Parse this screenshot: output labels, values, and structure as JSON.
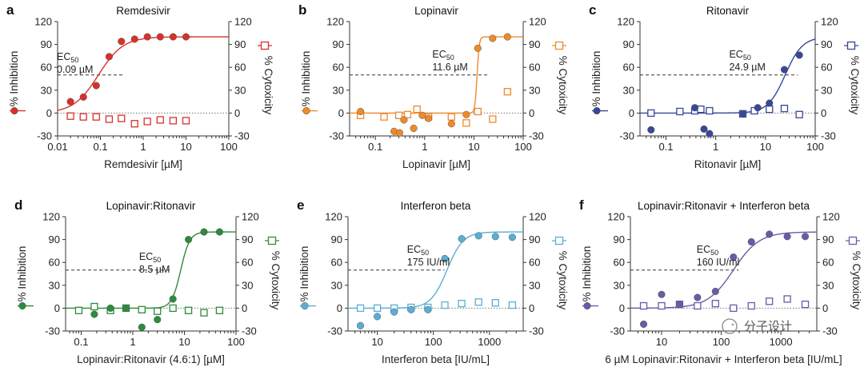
{
  "chart_data": [
    {
      "type": "scatter",
      "panel": "a",
      "title": "Remdesivir",
      "xlabel": "Remdesivir [µM]",
      "ylabel_left": "% Inhibition",
      "ylabel_right": "% Cytoxicity",
      "x_scale": "log",
      "xlim": [
        0.01,
        100
      ],
      "x_ticks": [
        0.01,
        0.1,
        1,
        10,
        100
      ],
      "x_tick_labels": [
        "0.01",
        "0.1",
        "1",
        "10",
        "100"
      ],
      "ylim": [
        -30,
        120
      ],
      "y_ticks": [
        -30,
        0,
        30,
        60,
        90,
        120
      ],
      "color": "#d7312a",
      "ec50_label": "EC50",
      "ec50_value_label": "0.09 µM",
      "ec50": 0.09,
      "fit_top": 100,
      "fit_bottom": 0,
      "fit_hill": 1.5,
      "inhibition": {
        "x": [
          0.02,
          0.04,
          0.08,
          0.16,
          0.31,
          0.63,
          1.25,
          2.5,
          5,
          10
        ],
        "y": [
          15,
          21,
          36,
          74,
          94,
          97,
          100,
          100,
          100,
          100
        ]
      },
      "cytotoxicity": {
        "x": [
          0.02,
          0.04,
          0.08,
          0.16,
          0.31,
          0.63,
          1.25,
          2.5,
          5,
          10
        ],
        "y": [
          -4,
          -5,
          -5,
          -8,
          -7,
          -14,
          -11,
          -9,
          -10,
          -10
        ]
      }
    },
    {
      "type": "scatter",
      "panel": "b",
      "title": "Lopinavir",
      "xlabel": "Lopinavir [µM]",
      "ylabel_left": "% Inhibition",
      "ylabel_right": "% Cytoxicity",
      "x_scale": "log",
      "xlim": [
        0.03,
        100
      ],
      "x_ticks": [
        0.1,
        1,
        10,
        100
      ],
      "x_tick_labels": [
        "0.1",
        "1",
        "10",
        "100"
      ],
      "ylim": [
        -30,
        120
      ],
      "y_ticks": [
        -30,
        0,
        30,
        60,
        90,
        120
      ],
      "color": "#ef8a2a",
      "ec50_label": "EC50",
      "ec50_value_label": "11.6 µM",
      "ec50": 11.6,
      "fit_top": 100,
      "fit_bottom": 0,
      "fit_hill": 20,
      "inhibition": {
        "x": [
          0.05,
          0.24,
          0.31,
          0.38,
          0.6,
          0.9,
          1.2,
          3.5,
          7,
          12,
          24,
          48
        ],
        "y": [
          2,
          -24,
          -26,
          -9,
          -20,
          -3,
          -7,
          -14,
          -2,
          85,
          98,
          100
        ]
      },
      "cytotoxicity": {
        "x": [
          0.05,
          0.15,
          0.3,
          0.45,
          0.7,
          1.2,
          3.5,
          7,
          12,
          24,
          48
        ],
        "y": [
          -3,
          -5,
          -3,
          -2,
          5,
          -5,
          -5,
          -13,
          2,
          -8,
          28
        ]
      }
    },
    {
      "type": "scatter",
      "panel": "c",
      "title": "Ritonavir",
      "xlabel": "Ritonavir [µM]",
      "ylabel_left": "% Inhibition",
      "ylabel_right": "% Cytoxicity",
      "x_scale": "log",
      "xlim": [
        0.03,
        100
      ],
      "x_ticks": [
        0.1,
        1,
        10,
        100
      ],
      "x_tick_labels": [
        "0.1",
        "1",
        "10",
        "100"
      ],
      "ylim": [
        -30,
        120
      ],
      "y_ticks": [
        -30,
        0,
        30,
        60,
        90,
        120
      ],
      "color": "#37479a",
      "ec50_label": "EC50",
      "ec50_value_label": "24.9 µM",
      "ec50": 24.9,
      "fit_top": 100,
      "fit_bottom": 0,
      "fit_hill": 2.5,
      "inhibition": {
        "x": [
          0.05,
          0.38,
          0.58,
          0.75,
          3.5,
          7,
          12,
          24,
          48
        ],
        "y": [
          -22,
          7,
          -21,
          -27,
          -1,
          7,
          13,
          57,
          76
        ]
      },
      "cytotoxicity": {
        "x": [
          0.05,
          0.19,
          0.38,
          0.5,
          0.75,
          3.5,
          6,
          12,
          24,
          48
        ],
        "y": [
          0,
          2,
          3,
          5,
          3,
          -1,
          3,
          5,
          6,
          -2
        ]
      }
    },
    {
      "type": "scatter",
      "panel": "d",
      "title": "Lopinavir:Ritonavir",
      "xlabel": "Lopinavir:Ritonavir (4.6:1) [µM]",
      "ylabel_left": "% Inhibition",
      "ylabel_right": "% Cytoxicity",
      "x_scale": "log",
      "xlim": [
        0.05,
        100
      ],
      "x_ticks": [
        0.1,
        1,
        10,
        100
      ],
      "x_tick_labels": [
        "0.1",
        "1",
        "10",
        "100"
      ],
      "ylim": [
        -30,
        120
      ],
      "y_ticks": [
        -30,
        0,
        30,
        60,
        90,
        120
      ],
      "color": "#2e8b3a",
      "ec50_label": "EC50",
      "ec50_value_label": "8.5 µM",
      "ec50": 8.5,
      "fit_top": 100,
      "fit_bottom": 0,
      "fit_hill": 5,
      "inhibition": {
        "x": [
          0.18,
          0.37,
          0.74,
          1.5,
          3,
          6,
          12,
          24,
          48
        ],
        "y": [
          -8,
          0,
          0,
          -25,
          -15,
          12,
          90,
          100,
          100
        ]
      },
      "cytotoxicity": {
        "x": [
          0.09,
          0.18,
          0.37,
          0.74,
          1.5,
          3,
          6,
          12,
          24,
          48
        ],
        "y": [
          -3,
          2,
          -3,
          0,
          -2,
          -4,
          0,
          -3,
          -6,
          -3
        ]
      }
    },
    {
      "type": "scatter",
      "panel": "e",
      "title": "Interferon beta",
      "xlabel": "Interferon beta [IU/mL]",
      "ylabel_left": "% Inhibition",
      "ylabel_right": "% Cytoxicity",
      "x_scale": "log",
      "xlim": [
        3,
        4000
      ],
      "x_ticks": [
        10,
        100,
        1000
      ],
      "x_tick_labels": [
        "10",
        "100",
        "1000"
      ],
      "ylim": [
        -30,
        120
      ],
      "y_ticks": [
        -30,
        0,
        30,
        60,
        90,
        120
      ],
      "color": "#5aaed6",
      "ec50_label": "EC50",
      "ec50_value_label": "175 IU/ml",
      "ec50": 175,
      "fit_top": 100,
      "fit_bottom": 0,
      "fit_hill": 3,
      "inhibition": {
        "x": [
          5,
          10,
          20,
          40,
          80,
          160,
          320,
          640,
          1280,
          2560
        ],
        "y": [
          -23,
          -11,
          -5,
          -2,
          -2,
          65,
          91,
          95,
          94,
          93
        ]
      },
      "cytotoxicity": {
        "x": [
          5,
          10,
          20,
          40,
          80,
          160,
          320,
          640,
          1280,
          2560
        ],
        "y": [
          0,
          0,
          0,
          1,
          1,
          4,
          6,
          8,
          7,
          4
        ]
      }
    },
    {
      "type": "scatter",
      "panel": "f",
      "title": "Lopinavir:Ritonavir + Interferon beta",
      "xlabel": "6 µM Lopinavir:Ritonavir + Interferon beta [IU/mL]",
      "ylabel_left": "% Inhibition",
      "ylabel_right": "% Cytoxicity",
      "x_scale": "log",
      "xlim": [
        3,
        4000
      ],
      "x_ticks": [
        10,
        100,
        1000
      ],
      "x_tick_labels": [
        "10",
        "100",
        "1000"
      ],
      "ylim": [
        -30,
        120
      ],
      "y_ticks": [
        -30,
        0,
        30,
        60,
        90,
        120
      ],
      "color": "#6a5aa8",
      "ec50_label": "EC50",
      "ec50_value_label": "160 IU/ml",
      "ec50": 160,
      "fit_top": 100,
      "fit_bottom": 0,
      "fit_hill": 2,
      "inhibition": {
        "x": [
          5,
          10,
          20,
          40,
          80,
          160,
          320,
          640,
          1280,
          2560
        ],
        "y": [
          -21,
          18,
          5,
          14,
          22,
          67,
          87,
          97,
          94,
          94
        ]
      },
      "cytotoxicity": {
        "x": [
          5,
          10,
          20,
          40,
          80,
          160,
          320,
          640,
          1280,
          2560
        ],
        "y": [
          3,
          3,
          5,
          3,
          6,
          0,
          3,
          9,
          12,
          5
        ]
      }
    }
  ],
  "watermark": "分子设计"
}
